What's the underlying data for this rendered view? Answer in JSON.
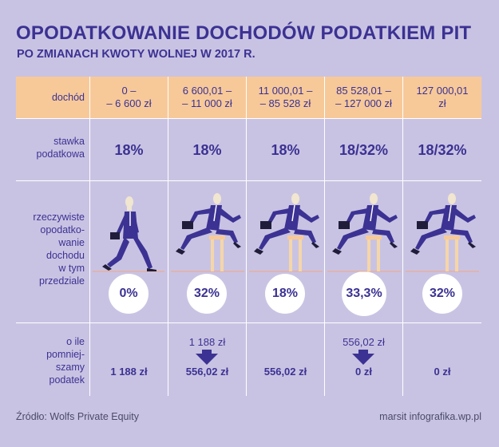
{
  "title": "OPODATKOWANIE DOCHODÓW PODATKIEM PIT",
  "subtitle": "PO ZMIANACH KWOTY WOLNEJ W 2017 R.",
  "row_labels": {
    "income": "dochód",
    "rate_line1": "stawka",
    "rate_line2": "podatkowa",
    "effective_lines": [
      "rzeczywiste",
      "opodatko-",
      "wanie",
      "dochodu",
      "w tym",
      "przedziale"
    ],
    "reduction_lines": [
      "o ile",
      "pomniej-",
      "szamy",
      "podatek"
    ]
  },
  "columns": [
    {
      "range_line1": "0 –",
      "range_line2": "– 6 600 zł",
      "rate": "18%",
      "effective": "0%",
      "reduction_from": "",
      "reduction_to": "1 188 zł",
      "hurdle": false
    },
    {
      "range_line1": "6 600,01 –",
      "range_line2": "– 11 000 zł",
      "rate": "18%",
      "effective": "32%",
      "reduction_from": "1 188 zł",
      "reduction_to": "556,02 zł",
      "hurdle": true
    },
    {
      "range_line1": "11 000,01 –",
      "range_line2": "– 85 528 zł",
      "rate": "18%",
      "effective": "18%",
      "reduction_from": "",
      "reduction_to": "556,02 zł",
      "hurdle": true
    },
    {
      "range_line1": "85 528,01 –",
      "range_line2": "– 127 000 zł",
      "rate": "18/32%",
      "effective": "33,3%",
      "reduction_from": "556,02 zł",
      "reduction_to": "0 zł",
      "hurdle": true
    },
    {
      "range_line1": "127 000,01",
      "range_line2": "zł",
      "rate": "18/32%",
      "effective": "32%",
      "reduction_from": "",
      "reduction_to": "0 zł",
      "hurdle": true
    }
  ],
  "source": "Źródło: Wolfs Private Equity",
  "credit": "marsit infografika.wp.pl",
  "colors": {
    "accent": "#3b3293",
    "header": "#f7c999",
    "background": "#c9c3e3"
  }
}
